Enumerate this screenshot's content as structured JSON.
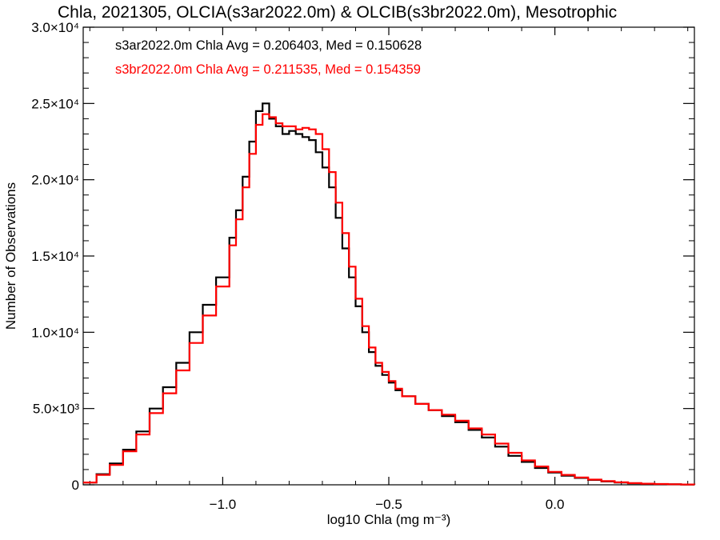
{
  "chart_data": {
    "type": "line",
    "title": "Chla, 2021305, OLCIA(s3ar2022.0m) & OLCIB(s3br2022.0m), Mesotrophic",
    "xlabel": "log10 Chla (mg m⁻³)",
    "ylabel": "Number of Observations",
    "xlim": [
      -1.42,
      0.42
    ],
    "ylim": [
      0,
      30000
    ],
    "x_ticks": [
      {
        "value": -1.0,
        "label": "−1.0"
      },
      {
        "value": -0.5,
        "label": "−0.5"
      },
      {
        "value": 0.0,
        "label": "0.0"
      }
    ],
    "y_ticks": [
      {
        "value": 0,
        "label": "0"
      },
      {
        "value": 5000,
        "label": "5.0×10³"
      },
      {
        "value": 10000,
        "label": "1.0×10⁴"
      },
      {
        "value": 15000,
        "label": "1.5×10⁴"
      },
      {
        "value": 20000,
        "label": "2.0×10⁴"
      },
      {
        "value": 25000,
        "label": "2.5×10⁴"
      },
      {
        "value": 30000,
        "label": "3.0×10⁴"
      }
    ],
    "grid": false,
    "legend_position": "top-left",
    "series": [
      {
        "name": "s3ar2022.0m",
        "color": "#000000",
        "legend": "s3ar2022.0m Chla Avg = 0.206403, Med = 0.150628",
        "x": [
          -1.42,
          -1.38,
          -1.34,
          -1.3,
          -1.26,
          -1.22,
          -1.18,
          -1.14,
          -1.1,
          -1.06,
          -1.02,
          -0.98,
          -0.96,
          -0.94,
          -0.92,
          -0.9,
          -0.88,
          -0.86,
          -0.84,
          -0.82,
          -0.8,
          -0.78,
          -0.76,
          -0.74,
          -0.72,
          -0.7,
          -0.68,
          -0.66,
          -0.64,
          -0.62,
          -0.6,
          -0.58,
          -0.56,
          -0.54,
          -0.52,
          -0.5,
          -0.48,
          -0.46,
          -0.42,
          -0.38,
          -0.34,
          -0.3,
          -0.26,
          -0.22,
          -0.18,
          -0.14,
          -0.1,
          -0.06,
          -0.02,
          0.02,
          0.06,
          0.1,
          0.14,
          0.18,
          0.22,
          0.26,
          0.3,
          0.34,
          0.38,
          0.42
        ],
        "y": [
          150,
          700,
          1400,
          2300,
          3500,
          5000,
          6400,
          8000,
          10000,
          11800,
          13600,
          16200,
          18000,
          20200,
          22500,
          24500,
          25000,
          24000,
          23500,
          23000,
          23200,
          23000,
          22800,
          22600,
          21800,
          20800,
          19500,
          17500,
          15500,
          13600,
          11700,
          10000,
          8700,
          7800,
          7200,
          6700,
          6200,
          5800,
          5300,
          4900,
          4500,
          4100,
          3600,
          3100,
          2500,
          1900,
          1500,
          1100,
          800,
          600,
          450,
          320,
          220,
          150,
          100,
          70,
          45,
          30,
          20,
          10
        ]
      },
      {
        "name": "s3br2022.0m",
        "color": "#ff0000",
        "legend": "s3br2022.0m Chla Avg = 0.211535, Med = 0.154359",
        "x": [
          -1.42,
          -1.38,
          -1.34,
          -1.3,
          -1.26,
          -1.22,
          -1.18,
          -1.14,
          -1.1,
          -1.06,
          -1.02,
          -0.98,
          -0.96,
          -0.94,
          -0.92,
          -0.9,
          -0.88,
          -0.86,
          -0.84,
          -0.82,
          -0.8,
          -0.78,
          -0.76,
          -0.74,
          -0.72,
          -0.7,
          -0.68,
          -0.66,
          -0.64,
          -0.62,
          -0.6,
          -0.58,
          -0.56,
          -0.54,
          -0.52,
          -0.5,
          -0.48,
          -0.46,
          -0.42,
          -0.38,
          -0.34,
          -0.3,
          -0.26,
          -0.22,
          -0.18,
          -0.14,
          -0.1,
          -0.06,
          -0.02,
          0.02,
          0.06,
          0.1,
          0.14,
          0.18,
          0.22,
          0.26,
          0.3,
          0.34,
          0.38,
          0.42
        ],
        "y": [
          150,
          650,
          1300,
          2200,
          3300,
          4700,
          6000,
          7500,
          9300,
          11100,
          13000,
          15700,
          17400,
          19500,
          21700,
          23600,
          24300,
          24100,
          23700,
          23500,
          23500,
          23300,
          23400,
          23300,
          23000,
          22000,
          20500,
          18500,
          16500,
          14300,
          12200,
          10400,
          9000,
          8000,
          7400,
          6800,
          6300,
          5800,
          5300,
          4900,
          4600,
          4200,
          3700,
          3300,
          2700,
          2100,
          1600,
          1200,
          850,
          650,
          480,
          340,
          240,
          160,
          110,
          75,
          50,
          35,
          20,
          10
        ]
      }
    ]
  }
}
